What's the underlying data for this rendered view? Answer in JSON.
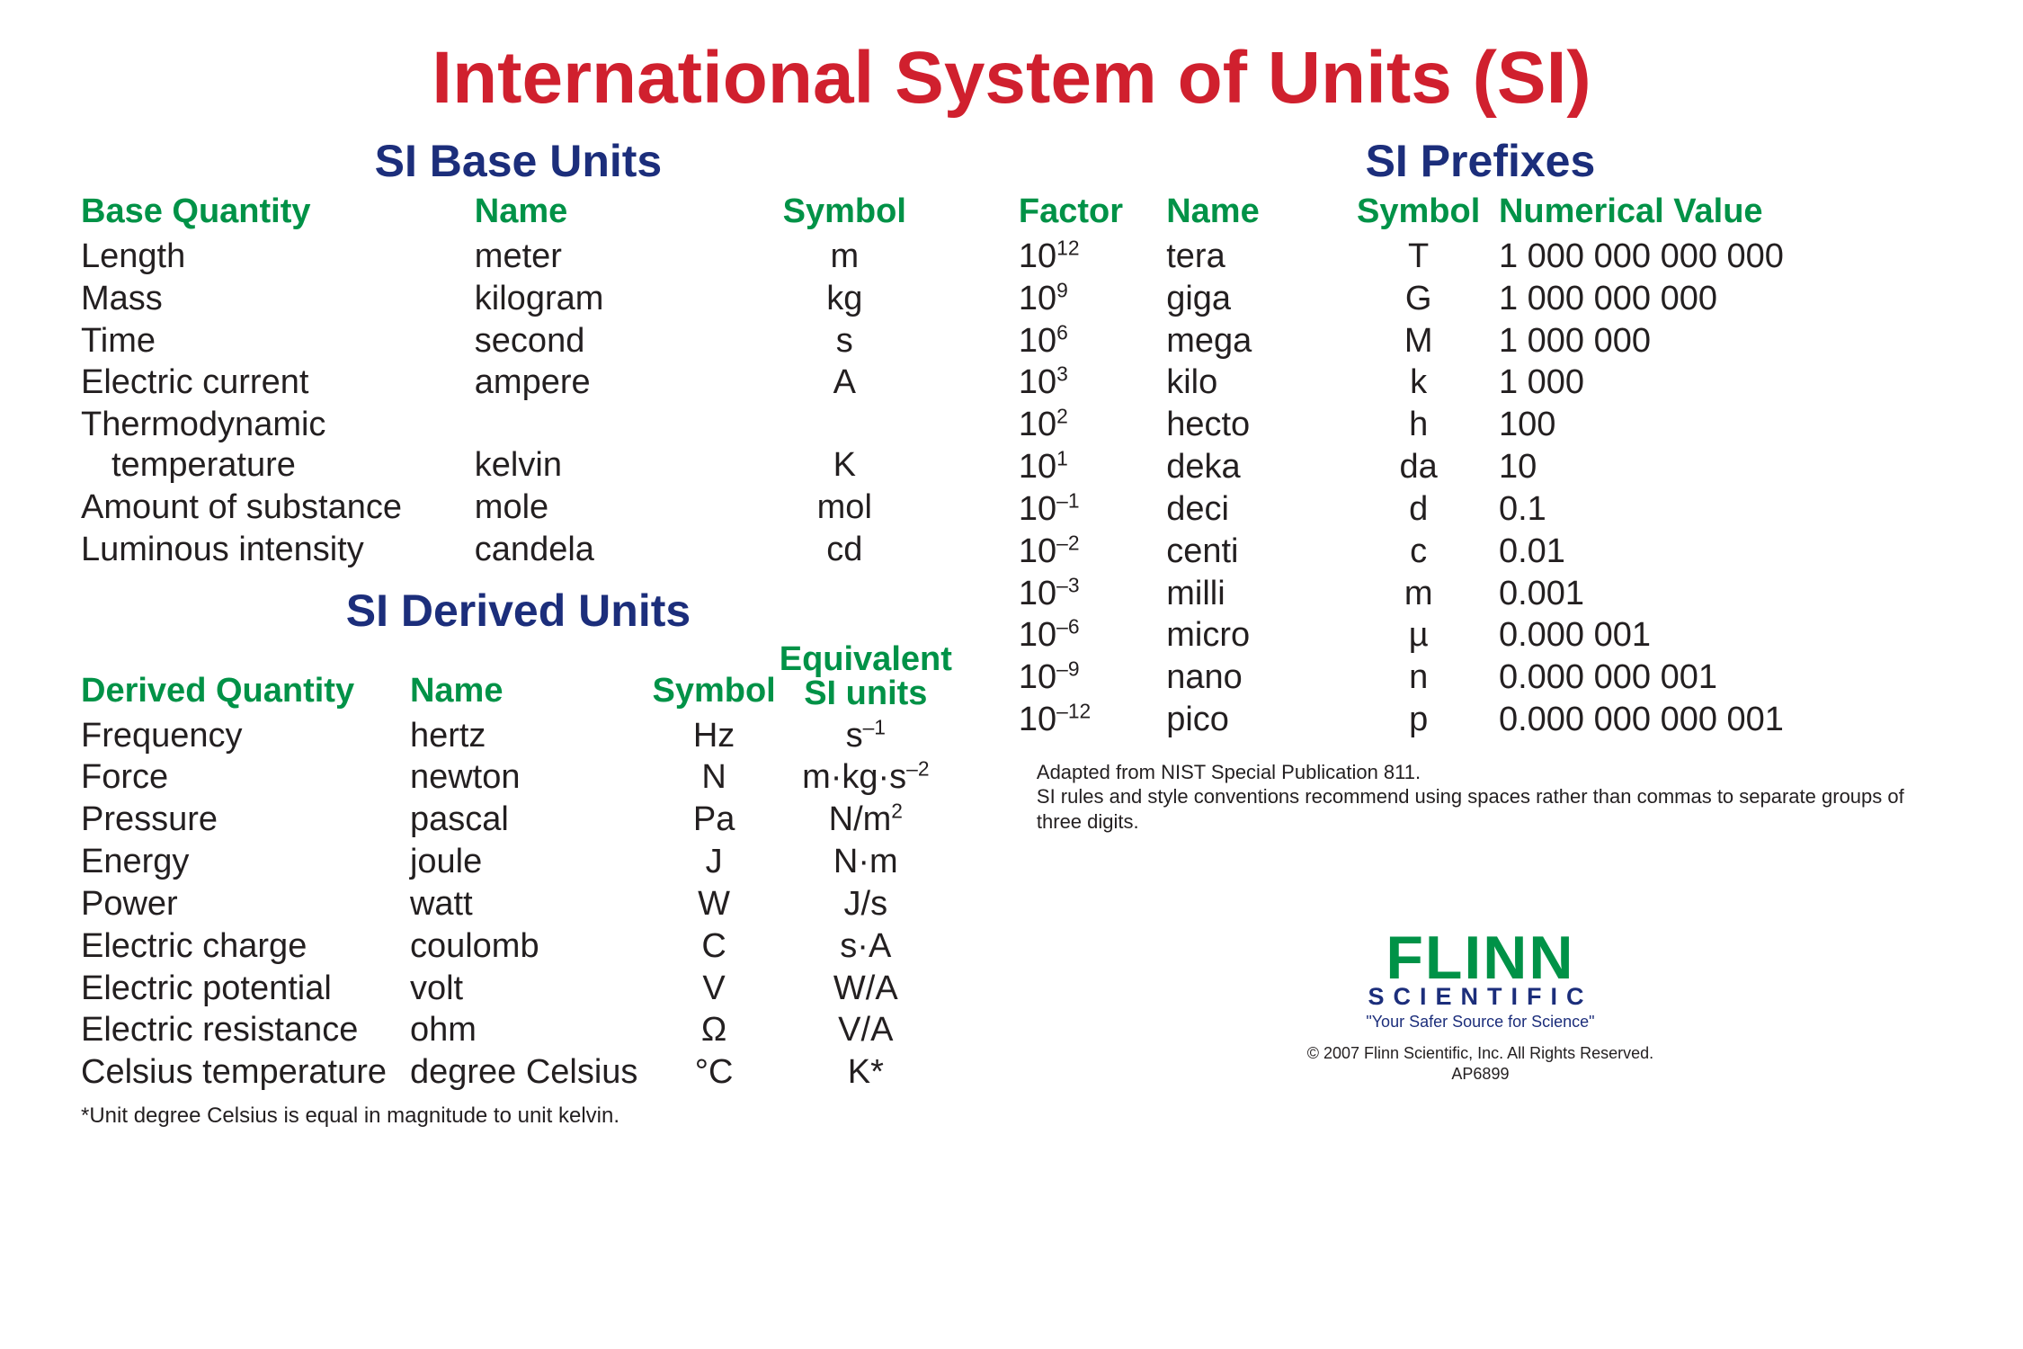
{
  "colors": {
    "title_red": "#d0202e",
    "section_blue": "#1c2e7b",
    "header_green": "#009247",
    "body_text": "#231f20",
    "logo_green": "#009247",
    "logo_sub": "#1c2e7b",
    "background": "#ffffff"
  },
  "typography": {
    "main_title_pt": 82,
    "section_title_pt": 50,
    "header_pt": 38,
    "body_pt": 38,
    "footnote_pt": 24,
    "font_family": "Arial Narrow"
  },
  "main_title": "International System of Units (SI)",
  "base_units": {
    "title": "SI Base Units",
    "columns": [
      "Base Quantity",
      "Name",
      "Symbol"
    ],
    "col_align": [
      "left",
      "left",
      "center"
    ],
    "rows": [
      {
        "quantity": "Length",
        "name": "meter",
        "symbol": "m"
      },
      {
        "quantity": "Mass",
        "name": "kilogram",
        "symbol": "kg"
      },
      {
        "quantity": "Time",
        "name": "second",
        "symbol": "s"
      },
      {
        "quantity": "Electric current",
        "name": "ampere",
        "symbol": "A"
      },
      {
        "quantity_line1": "Thermodynamic",
        "quantity_line2": "temperature",
        "name": "kelvin",
        "symbol": "K"
      },
      {
        "quantity": "Amount of substance",
        "name": "mole",
        "symbol": "mol"
      },
      {
        "quantity": "Luminous intensity",
        "name": "candela",
        "symbol": "cd"
      }
    ]
  },
  "derived_units": {
    "title": "SI Derived Units",
    "columns": [
      "Derived Quantity",
      "Name",
      "Symbol"
    ],
    "equiv_header_line1": "Equivalent",
    "equiv_header_line2": "SI units",
    "col_align": [
      "left",
      "left",
      "center",
      "center"
    ],
    "rows": [
      {
        "quantity": "Frequency",
        "name": "hertz",
        "symbol": "Hz",
        "equiv_html": "s<sup>–1</sup>"
      },
      {
        "quantity": "Force",
        "name": "newton",
        "symbol": "N",
        "equiv_html": "m·kg·s<sup>–2</sup>"
      },
      {
        "quantity": "Pressure",
        "name": "pascal",
        "symbol": "Pa",
        "equiv_html": "N/m<sup>2</sup>"
      },
      {
        "quantity": "Energy",
        "name": "joule",
        "symbol": "J",
        "equiv": "N·m"
      },
      {
        "quantity": "Power",
        "name": "watt",
        "symbol": "W",
        "equiv": "J/s"
      },
      {
        "quantity": "Electric charge",
        "name": "coulomb",
        "symbol": "C",
        "equiv": "s·A"
      },
      {
        "quantity": "Electric potential",
        "name": "volt",
        "symbol": "V",
        "equiv": "W/A"
      },
      {
        "quantity": "Electric resistance",
        "name": "ohm",
        "symbol": "Ω",
        "equiv": "V/A"
      },
      {
        "quantity": "Celsius temperature",
        "name": "degree Celsius",
        "symbol": "°C",
        "equiv": "K*"
      }
    ],
    "footnote": "*Unit degree Celsius is equal in magnitude to unit kelvin."
  },
  "prefixes": {
    "title": "SI Prefixes",
    "columns": [
      "Factor",
      "Name",
      "Symbol",
      "Numerical Value"
    ],
    "col_align": [
      "left",
      "left",
      "center",
      "left"
    ],
    "rows": [
      {
        "factor_exp": "12",
        "name": "tera",
        "symbol": "T",
        "value": "1 000 000 000 000"
      },
      {
        "factor_exp": "9",
        "name": "giga",
        "symbol": "G",
        "value": "1 000 000 000"
      },
      {
        "factor_exp": "6",
        "name": "mega",
        "symbol": "M",
        "value": "1 000 000"
      },
      {
        "factor_exp": "3",
        "name": "kilo",
        "symbol": "k",
        "value": "1 000"
      },
      {
        "factor_exp": "2",
        "name": "hecto",
        "symbol": "h",
        "value": "100"
      },
      {
        "factor_exp": "1",
        "name": "deka",
        "symbol": "da",
        "value": "10"
      },
      {
        "factor_exp": "–1",
        "name": "deci",
        "symbol": "d",
        "value": "0.1"
      },
      {
        "factor_exp": "–2",
        "name": "centi",
        "symbol": "c",
        "value": "0.01"
      },
      {
        "factor_exp": "–3",
        "name": "milli",
        "symbol": "m",
        "value": "0.001"
      },
      {
        "factor_exp": "–6",
        "name": "micro",
        "symbol": "µ",
        "value": "0.000 001"
      },
      {
        "factor_exp": "–9",
        "name": "nano",
        "symbol": "n",
        "value": "0.000 000 001"
      },
      {
        "factor_exp": "–12",
        "name": "pico",
        "symbol": "p",
        "value": "0.000 000 000 001"
      }
    ],
    "note_line1": "Adapted from NIST Special Publication 811.",
    "note_line2": "SI rules and style conventions recommend using spaces rather than commas to separate groups of three digits."
  },
  "logo": {
    "main": "FLINN",
    "sub": "SCIENTIFIC",
    "tagline": "\"Your Safer Source for Science\"",
    "copyright": "© 2007 Flinn Scientific, Inc. All Rights Reserved.",
    "sku": "AP6899"
  }
}
